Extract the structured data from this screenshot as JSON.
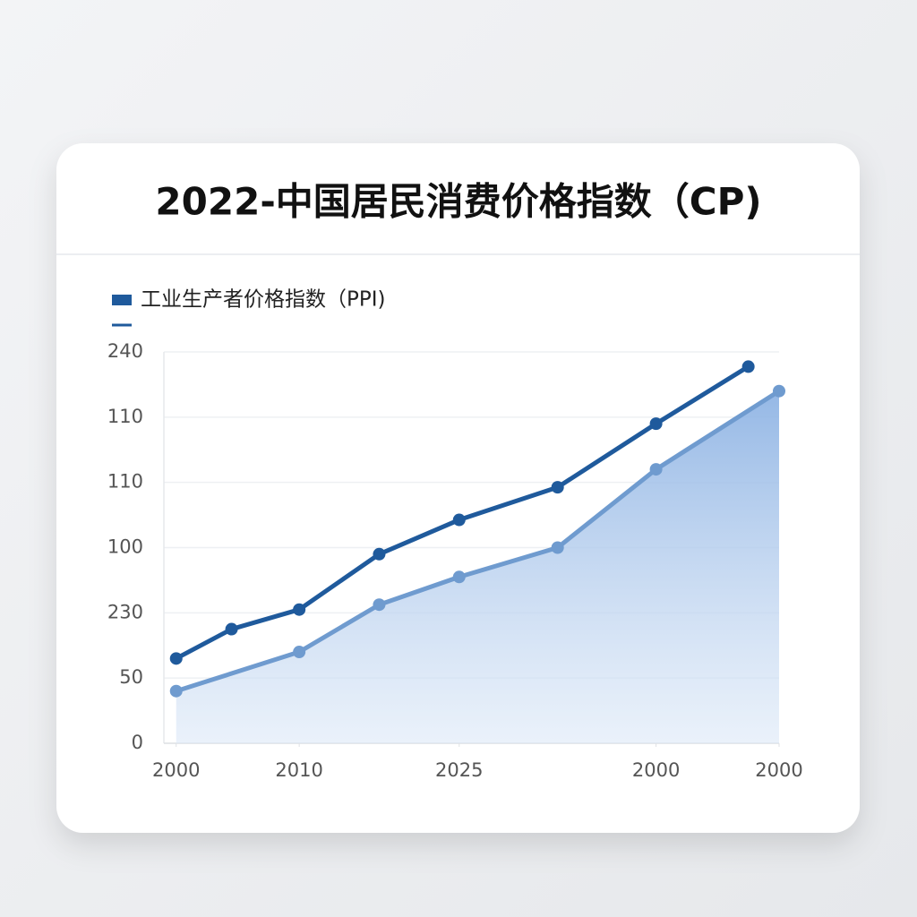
{
  "chart_data": {
    "type": "line",
    "title": "2022-中国居民消费价格指数（CP)",
    "series": [
      {
        "name": "工业生产者价格指数（PPI)",
        "color": "#1f5a9c",
        "x": [
          2,
          11,
          22,
          35,
          48,
          64,
          80,
          95
        ],
        "values": [
          52,
          70,
          82,
          116,
          137,
          157,
          196,
          231
        ]
      },
      {
        "color": "#6f9bcf",
        "area": true,
        "x": [
          2,
          22,
          35,
          48,
          64,
          80,
          100
        ],
        "values": [
          32,
          56,
          85,
          102,
          120,
          168,
          216
        ]
      }
    ],
    "xlim": [
      0,
      100
    ],
    "xticks": [
      {
        "value": 2,
        "label": "2000"
      },
      {
        "value": 22,
        "label": "2010"
      },
      {
        "value": 48,
        "label": "2025"
      },
      {
        "value": 80,
        "label": "2000"
      },
      {
        "value": 100,
        "label": "2000"
      }
    ],
    "ylim": [
      0,
      240
    ],
    "yticks": [
      0,
      {
        "value": 40,
        "label": "50"
      },
      {
        "value": 80,
        "label": "230"
      },
      {
        "value": 120,
        "label": "100"
      },
      {
        "value": 160,
        "label": "110"
      },
      {
        "value": 200,
        "label": "110"
      },
      240
    ],
    "grid": true,
    "legend": "top-left"
  }
}
